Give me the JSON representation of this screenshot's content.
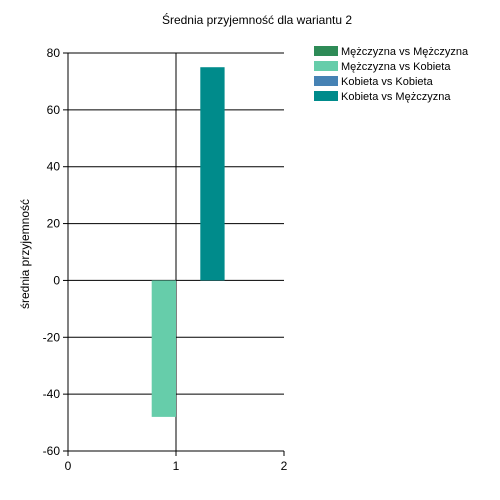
{
  "chart_data": {
    "type": "bar",
    "title": "Średnia przyjemność dla wariantu 2",
    "xlabel": "",
    "ylabel": "średnia przyjemność",
    "xlim": [
      0,
      2
    ],
    "ylim": [
      -60,
      80
    ],
    "x_ticks": [
      "0",
      "1",
      "2"
    ],
    "y_ticks": [
      "80",
      "60",
      "40",
      "20",
      "0",
      "-20",
      "-40",
      "-60"
    ],
    "grid": "horizontal",
    "legend_position": "top-right",
    "series": [
      {
        "name": "Mężczyzna vs Mężczyzna",
        "color": "#2e8b57",
        "x": 1,
        "value": 0
      },
      {
        "name": "Mężczyzna vs Kobieta",
        "color": "#66cdaa",
        "x": 1,
        "value": -48
      },
      {
        "name": "Kobieta vs Kobieta",
        "color": "#4682b4",
        "x": 1,
        "value": 0
      },
      {
        "name": "Kobieta vs Mężczyzna",
        "color": "#008b8b",
        "x": 1,
        "value": 75
      }
    ]
  }
}
